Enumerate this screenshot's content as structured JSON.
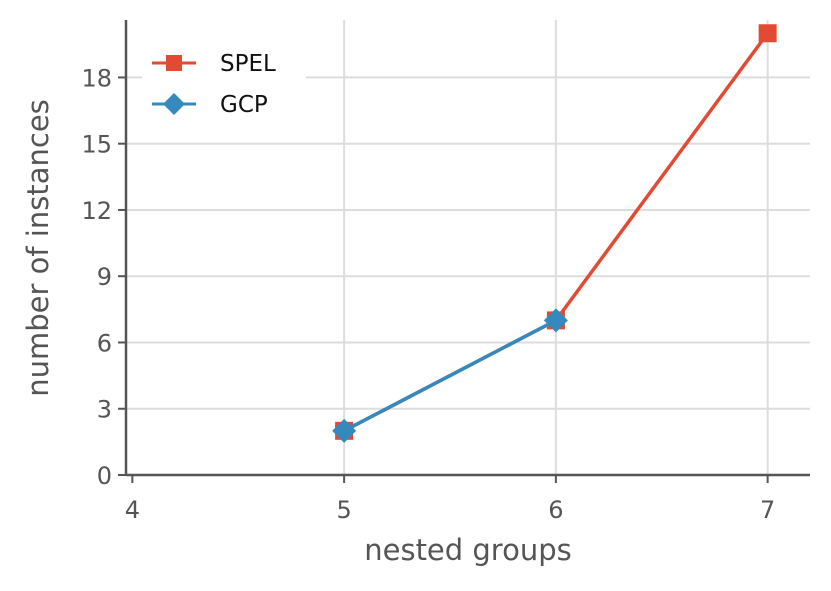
{
  "chart_data": {
    "type": "line",
    "xlabel": "nested groups",
    "ylabel": "number of instances",
    "x_ticks": [
      4,
      5,
      6,
      7
    ],
    "y_ticks": [
      0,
      3,
      6,
      9,
      12,
      15,
      18
    ],
    "xlim": [
      3.97,
      7.2
    ],
    "ylim": [
      0,
      20.6
    ],
    "grid": true,
    "legend_position": "top-left",
    "series": [
      {
        "name": "SPEL",
        "marker": "square",
        "color": "#E24A33",
        "x": [
          5,
          6,
          7
        ],
        "y": [
          2,
          7,
          20
        ]
      },
      {
        "name": "GCP",
        "marker": "diamond",
        "color": "#348ABD",
        "x": [
          5,
          6
        ],
        "y": [
          2,
          7
        ]
      }
    ]
  }
}
